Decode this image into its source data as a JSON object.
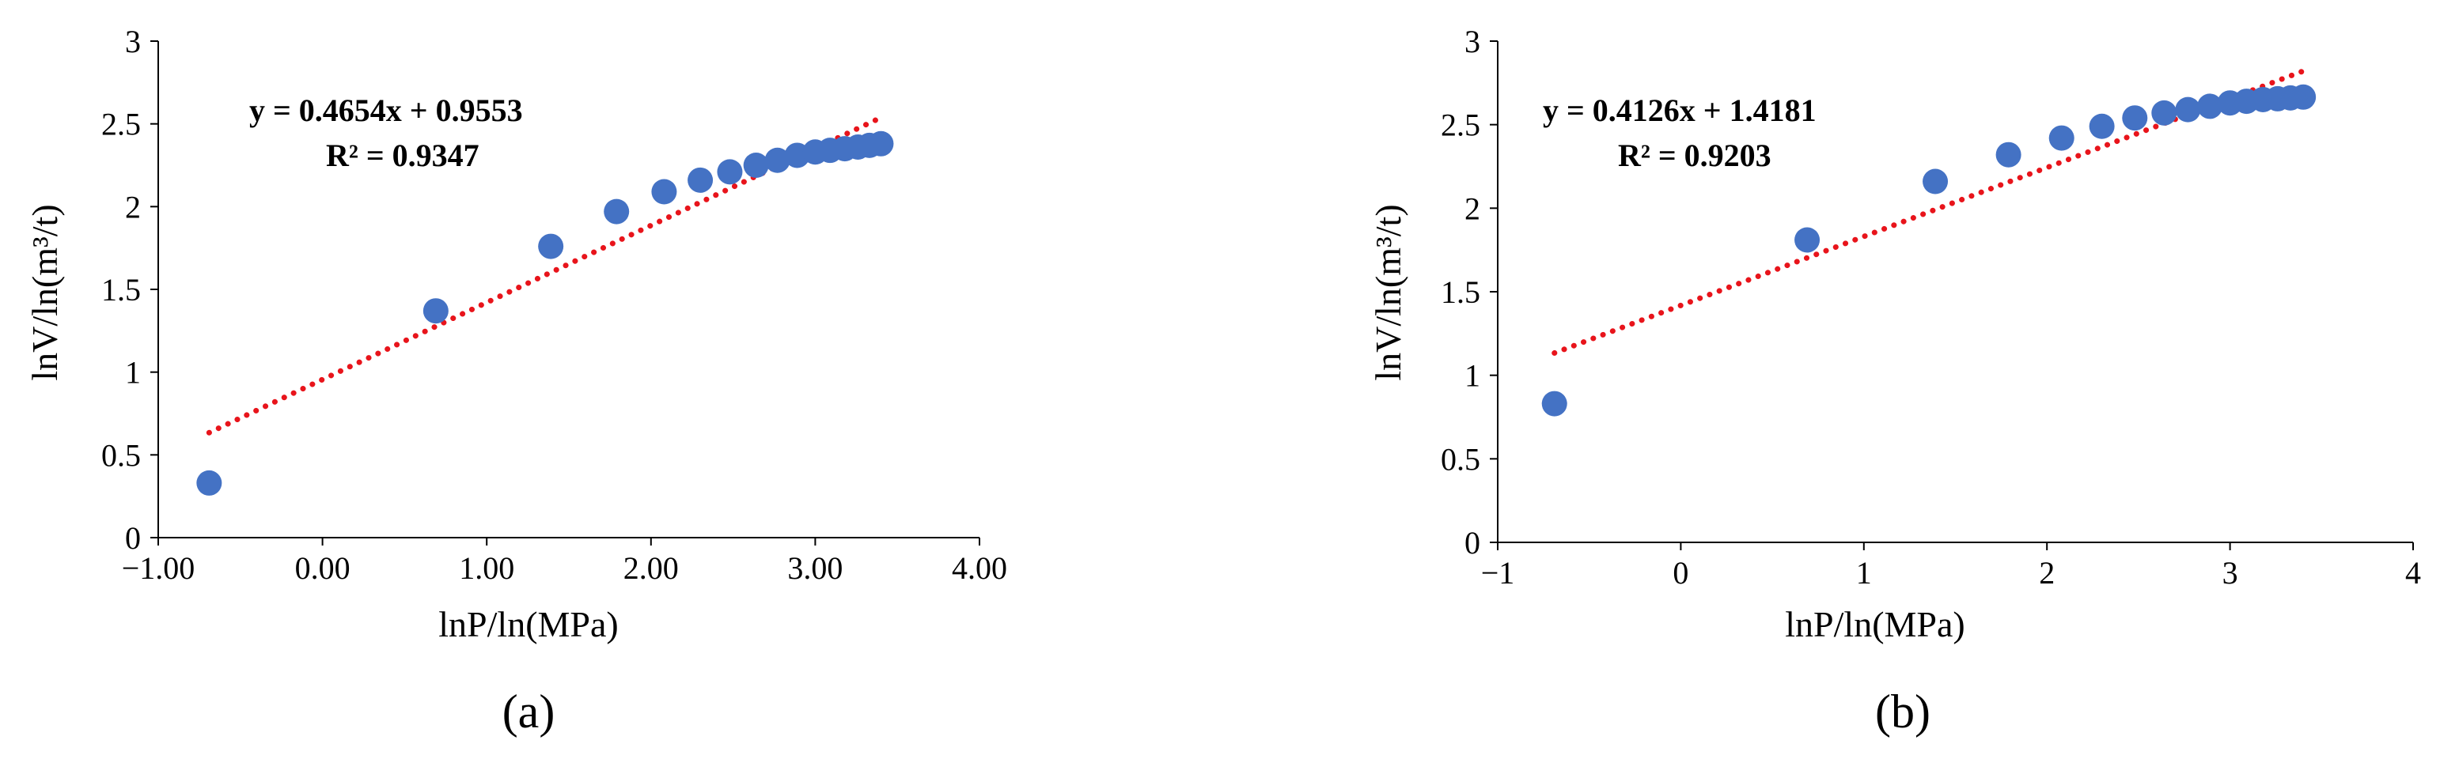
{
  "chart_data": [
    {
      "type": "scatter",
      "panel_label": "(a)",
      "xlabel": "lnP/ln(MPa)",
      "ylabel": "lnV/ln(m³/t)",
      "xlim": [
        -1.0,
        4.0
      ],
      "ylim": [
        0,
        3
      ],
      "xticks": [
        "−1.00",
        "0.00",
        "1.00",
        "2.00",
        "3.00",
        "4.00"
      ],
      "yticks": [
        "0",
        "0.5",
        "1",
        "1.5",
        "2",
        "2.5",
        "3"
      ],
      "trendline": {
        "type": "linear",
        "slope": 0.4654,
        "intercept": 0.9553,
        "x_range": [
          -0.69,
          3.4
        ],
        "equation": "y = 0.4654x + 0.9553",
        "r2": "R² = 0.9347",
        "color": "#e8141b",
        "style": "dotted"
      },
      "marker_color": "#4472c4",
      "grid": false,
      "series": [
        {
          "x": [
            -0.69,
            0.69,
            1.39,
            1.79,
            2.08,
            2.3,
            2.48,
            2.64,
            2.77,
            2.89,
            3.0,
            3.09,
            3.18,
            3.26,
            3.33,
            3.4
          ],
          "y": [
            0.33,
            1.37,
            1.76,
            1.97,
            2.09,
            2.16,
            2.21,
            2.25,
            2.28,
            2.31,
            2.33,
            2.34,
            2.35,
            2.36,
            2.37,
            2.38
          ]
        }
      ]
    },
    {
      "type": "scatter",
      "panel_label": "(b)",
      "xlabel": "lnP/ln(MPa)",
      "ylabel": "lnV/ln(m³/t)",
      "xlim": [
        -1,
        4
      ],
      "ylim": [
        0,
        3
      ],
      "xticks": [
        "−1",
        "0",
        "1",
        "2",
        "3",
        "4"
      ],
      "yticks": [
        "0",
        "0.5",
        "1",
        "1.5",
        "2",
        "2.5",
        "3"
      ],
      "trendline": {
        "type": "linear",
        "slope": 0.4126,
        "intercept": 1.4181,
        "x_range": [
          -0.69,
          3.4
        ],
        "equation": "y = 0.4126x + 1.4181",
        "r2": "R² = 0.9203",
        "color": "#e8141b",
        "style": "dotted"
      },
      "marker_color": "#4472c4",
      "grid": false,
      "series": [
        {
          "x": [
            -0.69,
            0.69,
            1.39,
            1.79,
            2.08,
            2.3,
            2.48,
            2.64,
            2.77,
            2.89,
            3.0,
            3.09,
            3.18,
            3.26,
            3.33,
            3.4
          ],
          "y": [
            0.83,
            1.81,
            2.16,
            2.32,
            2.42,
            2.49,
            2.54,
            2.57,
            2.59,
            2.61,
            2.63,
            2.64,
            2.65,
            2.655,
            2.66,
            2.665
          ]
        }
      ]
    }
  ]
}
